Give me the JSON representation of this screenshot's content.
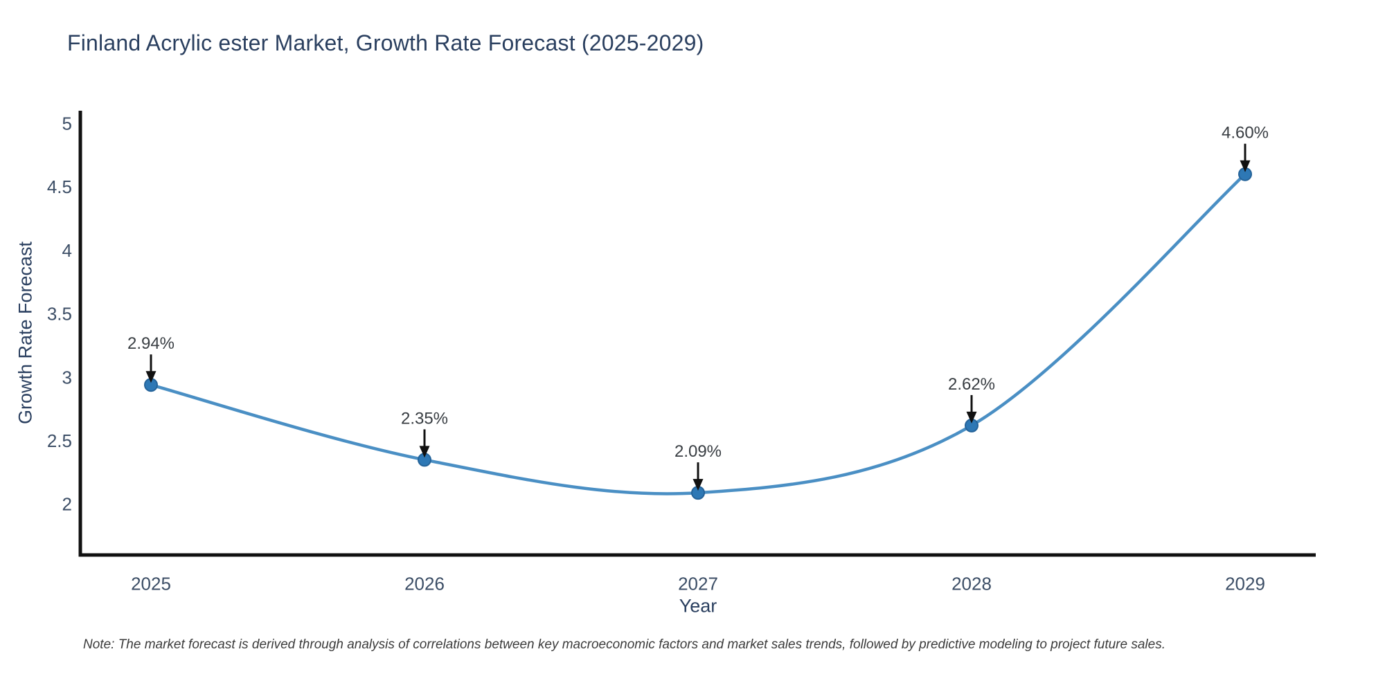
{
  "footnote": "Note: The market forecast is derived through analysis of correlations between key macroeconomic factors and market sales trends, followed by predictive modeling to project future sales.",
  "chart_data": {
    "type": "line",
    "title": "Finland Acrylic ester Market, Growth Rate Forecast (2025-2029)",
    "xlabel": "Year",
    "ylabel": "Growth Rate Forecast",
    "x": [
      "2025",
      "2026",
      "2027",
      "2028",
      "2029"
    ],
    "series": [
      {
        "name": "Growth Rate Forecast",
        "values": [
          2.94,
          2.35,
          2.09,
          2.62,
          4.6
        ],
        "point_labels": [
          "2.94%",
          "2.35%",
          "2.09%",
          "2.62%",
          "4.60%"
        ]
      }
    ],
    "y_ticks": [
      5,
      4.5,
      4,
      3.5,
      3,
      2.5,
      2
    ],
    "ylim": [
      1.6,
      5.1
    ],
    "grid": false,
    "legend": "none",
    "line_shape": "spline",
    "marker": "circle",
    "annotation_style": "down-arrow",
    "colors": {
      "line": "#4a8fc4",
      "marker_fill": "#2e78b5",
      "marker_edge": "#256399",
      "axis": "#111111",
      "title_text": "#2a3f5f",
      "tick_text": "#3c4e66",
      "axis_label_text": "#2a3f5f",
      "annotation_text": "#383d42",
      "arrow": "#111111",
      "note_text": "#3b3b3b",
      "background": "#ffffff"
    }
  }
}
